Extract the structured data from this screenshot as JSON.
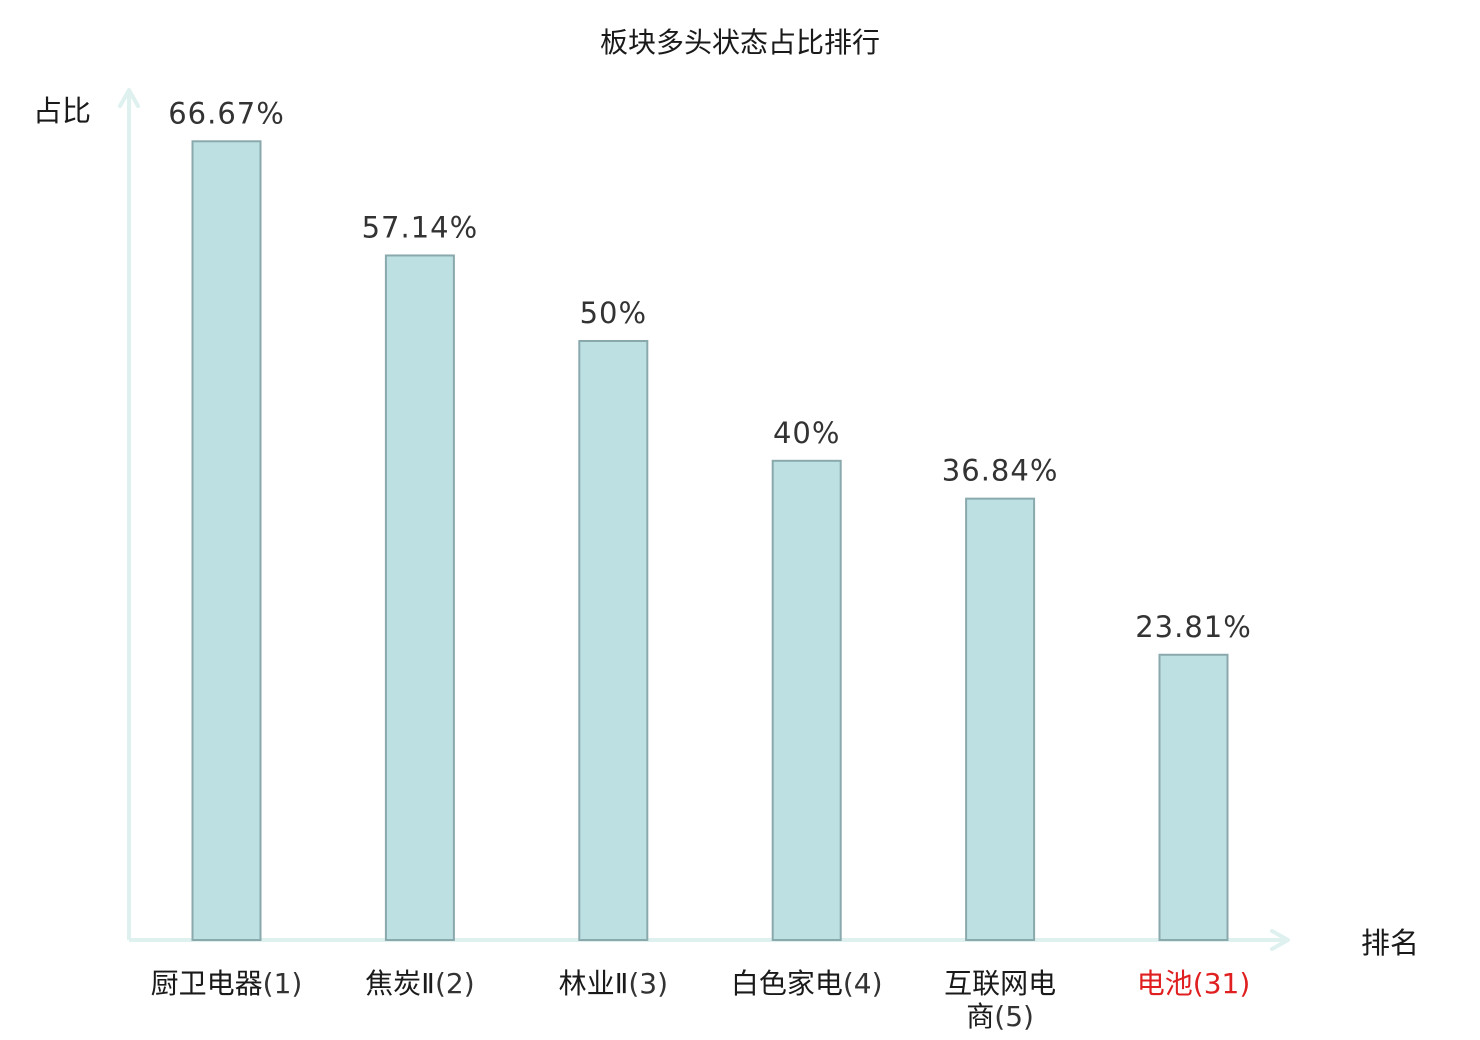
{
  "chart_data": {
    "type": "bar",
    "title": "板块多头状态占比排行",
    "ylabel": "占比",
    "xlabel": "排名",
    "ylim": [
      0,
      70
    ],
    "grid": false,
    "legend": "none",
    "categories": [
      {
        "name": "厨卫电器",
        "rank": "(1)",
        "highlight": false
      },
      {
        "name": "焦炭Ⅱ",
        "rank": "(2)",
        "highlight": false
      },
      {
        "name": "林业Ⅱ",
        "rank": "(3)",
        "highlight": false
      },
      {
        "name": "白色家电",
        "rank": "(4)",
        "highlight": false
      },
      {
        "name": "互联网电商",
        "rank": "(5)",
        "highlight": false
      },
      {
        "name": "电池",
        "rank": "(31)",
        "highlight": true
      }
    ],
    "values": [
      66.67,
      57.14,
      50,
      40,
      36.84,
      23.81
    ],
    "value_labels": [
      "66.67%",
      "57.14%",
      "50%",
      "40%",
      "36.84%",
      "23.81%"
    ],
    "colors": {
      "bar_fill": "#bde0e3",
      "bar_stroke": "#8aa9ad",
      "axis": "#dff1ef",
      "highlight": "#e02020"
    }
  }
}
